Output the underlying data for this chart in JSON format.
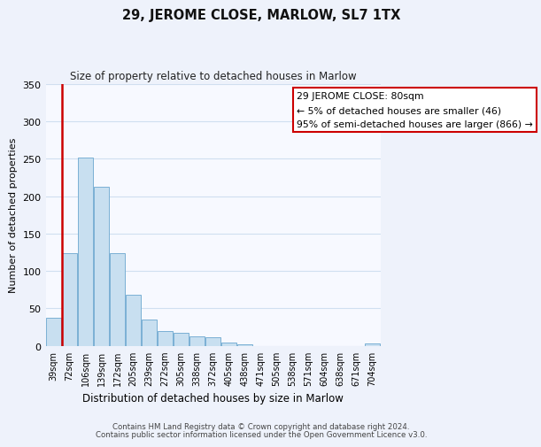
{
  "title": "29, JEROME CLOSE, MARLOW, SL7 1TX",
  "subtitle": "Size of property relative to detached houses in Marlow",
  "xlabel": "Distribution of detached houses by size in Marlow",
  "ylabel": "Number of detached properties",
  "bar_labels": [
    "39sqm",
    "72sqm",
    "106sqm",
    "139sqm",
    "172sqm",
    "205sqm",
    "239sqm",
    "272sqm",
    "305sqm",
    "338sqm",
    "372sqm",
    "405sqm",
    "438sqm",
    "471sqm",
    "505sqm",
    "538sqm",
    "571sqm",
    "604sqm",
    "638sqm",
    "671sqm",
    "704sqm"
  ],
  "bar_values": [
    38,
    124,
    252,
    212,
    124,
    68,
    35,
    20,
    17,
    13,
    11,
    5,
    2,
    0,
    0,
    0,
    0,
    0,
    0,
    0,
    3
  ],
  "bar_color": "#c8dff0",
  "bar_edge_color": "#7ab0d4",
  "highlight_color": "#cc0000",
  "ylim": [
    0,
    350
  ],
  "yticks": [
    0,
    50,
    100,
    150,
    200,
    250,
    300,
    350
  ],
  "annotation_text": "29 JEROME CLOSE: 80sqm\n← 5% of detached houses are smaller (46)\n95% of semi-detached houses are larger (866) →",
  "annotation_box_color": "#ffffff",
  "annotation_box_edge_color": "#cc0000",
  "footer_line1": "Contains HM Land Registry data © Crown copyright and database right 2024.",
  "footer_line2": "Contains public sector information licensed under the Open Government Licence v3.0.",
  "background_color": "#eef2fb",
  "plot_background_color": "#f7f9ff",
  "grid_color": "#d0dff0"
}
